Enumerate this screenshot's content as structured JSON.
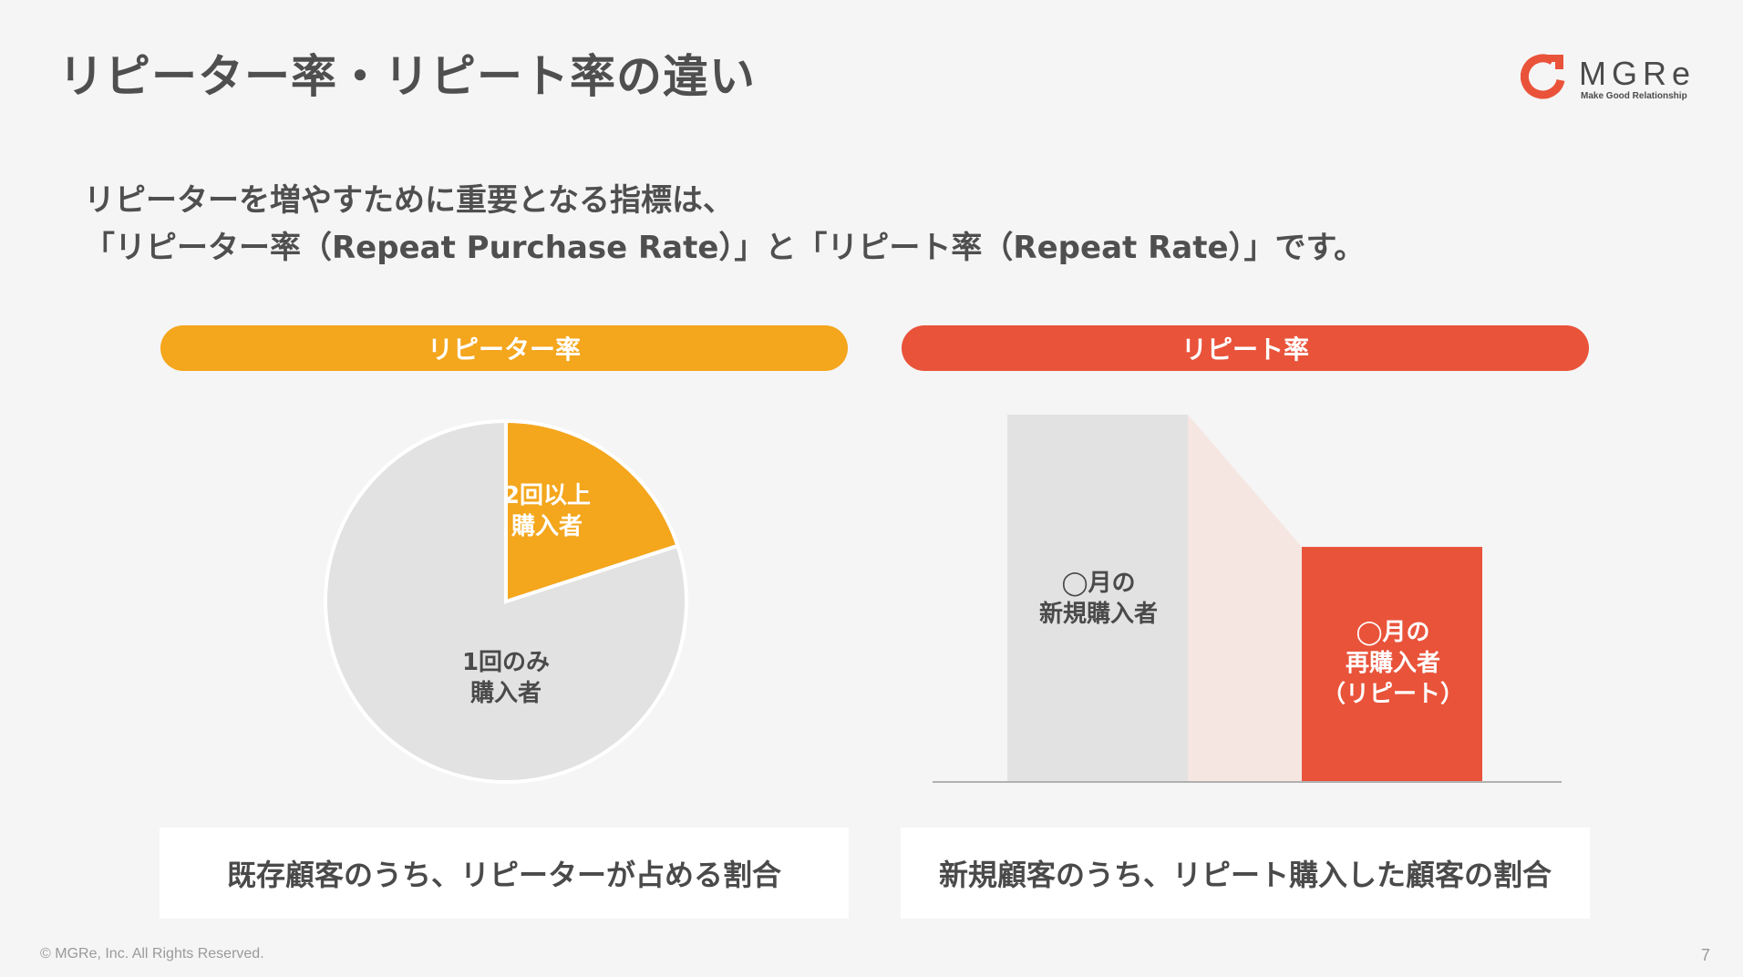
{
  "title": "リピーター率・リピート率の違い",
  "logo": {
    "name": "MGRe",
    "tagline": "Make Good Relationship"
  },
  "intro": {
    "line1": "リピーターを増やすために重要となる指標は、",
    "line2": "「リピーター率（Repeat Purchase Rate）」と「リピート率（Repeat Rate）」です。"
  },
  "left_panel": {
    "header": "リピーター率",
    "pie": {
      "slices": [
        {
          "label": "2回以上\n購入者",
          "line1": "2回以上",
          "line2": "購入者",
          "fraction": 0.2
        },
        {
          "label": "1回のみ\n購入者",
          "line1": "1回のみ",
          "line2": "購入者",
          "fraction": 0.8
        }
      ]
    },
    "caption": "既存顧客のうち、リピーターが占める割合"
  },
  "right_panel": {
    "header": "リピート率",
    "bars": [
      {
        "line1": "◯月の",
        "line2": "新規購入者",
        "value": 1.0
      },
      {
        "line1": "◯月の",
        "line2": "再購入者",
        "line3": "（リピート）",
        "value": 0.64
      }
    ],
    "caption": "新規顧客のうち、リピート購入した顧客の割合"
  },
  "colors": {
    "orange": "#f4a61c",
    "red": "#e9533a",
    "gray_fill": "#e2e2e2",
    "connector": "#f5e6e2",
    "background": "#f5f5f5"
  },
  "footer": "© MGRe, Inc. All Rights Reserved.",
  "page_number": "7"
}
